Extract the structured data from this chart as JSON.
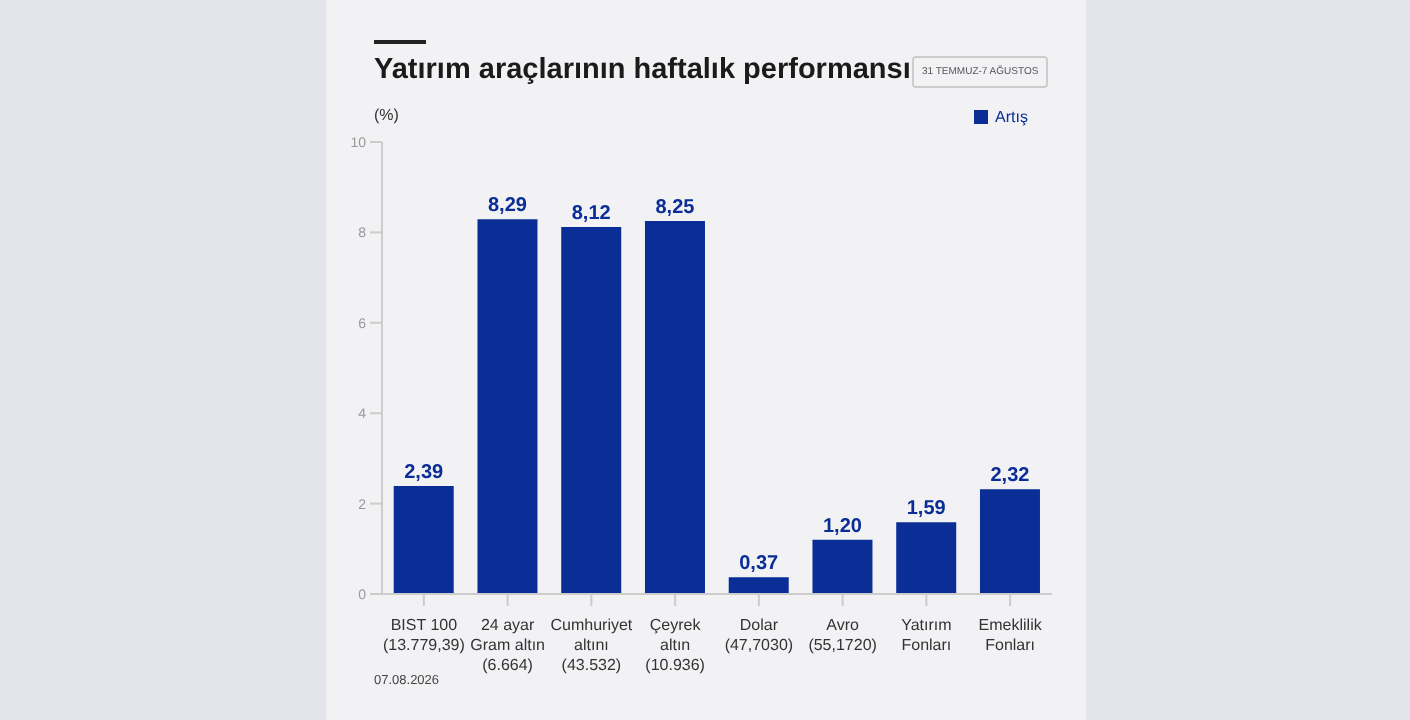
{
  "chart_data": {
    "type": "bar",
    "title": "Yatırım araçlarının haftalık performansı",
    "subtitle": "31 TEMMUZ-7 AĞUSTOS",
    "ylabel": "(%)",
    "categories": [
      "BIST 100\n(13.779,39)",
      "24 ayar\nGram altın\n(6.664)",
      "Cumhuriyet\naltını\n(43.532)",
      "Çeyrek\naltın\n(10.936)",
      "Dolar\n(47,7030)",
      "Avro\n(55,1720)",
      "Yatırım\nFonları",
      "Emeklilik\nFonları"
    ],
    "series": [
      {
        "name": "Artış",
        "color": "#0a2d96",
        "values": [
          2.39,
          8.29,
          8.12,
          8.25,
          0.37,
          1.2,
          1.59,
          2.32
        ],
        "value_labels": [
          "2,39",
          "8,29",
          "8,12",
          "8,25",
          "0,37",
          "1,20",
          "1,59",
          "2,32"
        ]
      }
    ],
    "ylim": [
      0,
      10
    ],
    "yticks": [
      0,
      2,
      4,
      6,
      8,
      10
    ],
    "grid": false,
    "legend": "top right",
    "annotations": [
      "07.08.2026"
    ]
  }
}
